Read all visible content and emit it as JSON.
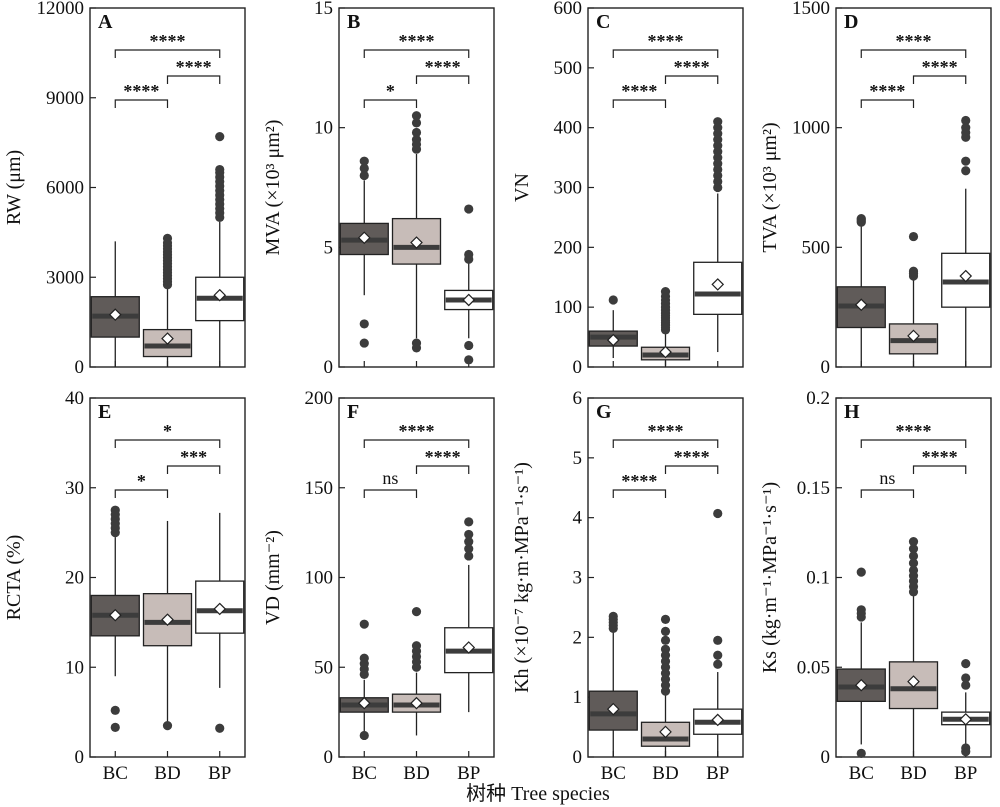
{
  "figure": {
    "x_label": "树种 Tree species",
    "categories": [
      "BC",
      "BD",
      "BP"
    ],
    "box_colors": [
      "#605b59",
      "#c7bcb8",
      "#ffffff"
    ],
    "median_color": "#3c3c3c",
    "outlier_color": "#3c3c3c"
  },
  "chart_data": [
    {
      "type": "box",
      "panel": "A",
      "ylabel": "RW (μm)",
      "ylim": [
        0,
        12000
      ],
      "yticks": [
        0,
        3000,
        6000,
        9000,
        12000
      ],
      "boxes": [
        {
          "category": "BC",
          "whisker_low": 0,
          "q1": 1000,
          "median": 1700,
          "q3": 2350,
          "whisker_high": 4200,
          "mean": 1750,
          "outliers": []
        },
        {
          "category": "BD",
          "whisker_low": 0,
          "q1": 350,
          "median": 700,
          "q3": 1250,
          "whisker_high": 2650,
          "mean": 950,
          "outliers": [
            2750,
            2850,
            2950,
            3050,
            3150,
            3250,
            3350,
            3450,
            3550,
            3650,
            3750,
            3850,
            3950,
            4050,
            4150,
            4300
          ]
        },
        {
          "category": "BP",
          "whisker_low": 0,
          "q1": 1550,
          "median": 2300,
          "q3": 3000,
          "whisker_high": 4850,
          "mean": 2400,
          "outliers": [
            5000,
            5150,
            5300,
            5450,
            5600,
            5750,
            5900,
            6050,
            6200,
            6350,
            6500,
            6600,
            7700
          ]
        }
      ],
      "significance": [
        {
          "from": "BC",
          "to": "BD",
          "label": "****"
        },
        {
          "from": "BD",
          "to": "BP",
          "label": "****"
        },
        {
          "from": "BC",
          "to": "BP",
          "label": "****"
        }
      ]
    },
    {
      "type": "box",
      "panel": "B",
      "ylabel": "MVA (×10³ μm²)",
      "ylim": [
        0,
        15
      ],
      "yticks": [
        0,
        5,
        10,
        15
      ],
      "boxes": [
        {
          "category": "BC",
          "whisker_low": 3.0,
          "q1": 4.7,
          "median": 5.3,
          "q3": 6.0,
          "whisker_high": 7.8,
          "mean": 5.4,
          "outliers": [
            1.0,
            1.8,
            8.0,
            8.3,
            8.6
          ]
        },
        {
          "category": "BD",
          "whisker_low": 1.2,
          "q1": 4.3,
          "median": 5.0,
          "q3": 6.2,
          "whisker_high": 8.9,
          "mean": 5.2,
          "outliers": [
            0.8,
            1.0,
            9.1,
            9.3,
            9.5,
            9.8,
            10.2,
            10.5
          ]
        },
        {
          "category": "BP",
          "whisker_low": 1.2,
          "q1": 2.4,
          "median": 2.8,
          "q3": 3.2,
          "whisker_high": 4.4,
          "mean": 2.8,
          "outliers": [
            0.3,
            0.9,
            4.5,
            4.7,
            6.6
          ]
        }
      ],
      "significance": [
        {
          "from": "BC",
          "to": "BD",
          "label": "*"
        },
        {
          "from": "BD",
          "to": "BP",
          "label": "****"
        },
        {
          "from": "BC",
          "to": "BP",
          "label": "****"
        }
      ]
    },
    {
      "type": "box",
      "panel": "C",
      "ylabel": "VN",
      "ylim": [
        0,
        600
      ],
      "yticks": [
        0,
        100,
        200,
        300,
        400,
        500,
        600
      ],
      "boxes": [
        {
          "category": "BC",
          "whisker_low": 15,
          "q1": 35,
          "median": 50,
          "q3": 60,
          "whisker_high": 95,
          "mean": 45,
          "outliers": [
            112
          ]
        },
        {
          "category": "BD",
          "whisker_low": 2,
          "q1": 12,
          "median": 20,
          "q3": 33,
          "whisker_high": 60,
          "mean": 25,
          "outliers": [
            62,
            66,
            70,
            74,
            78,
            82,
            86,
            90,
            95,
            100,
            106,
            112,
            118,
            126
          ]
        },
        {
          "category": "BP",
          "whisker_low": 25,
          "q1": 88,
          "median": 122,
          "q3": 175,
          "whisker_high": 290,
          "mean": 138,
          "outliers": [
            300,
            310,
            320,
            330,
            340,
            350,
            360,
            370,
            380,
            390,
            400,
            410
          ]
        }
      ],
      "significance": [
        {
          "from": "BC",
          "to": "BD",
          "label": "****"
        },
        {
          "from": "BD",
          "to": "BP",
          "label": "****"
        },
        {
          "from": "BC",
          "to": "BP",
          "label": "****"
        }
      ]
    },
    {
      "type": "box",
      "panel": "D",
      "ylabel": "TVA (×10³ μm²)",
      "ylim": [
        0,
        1500
      ],
      "yticks": [
        0,
        500,
        1000,
        1500
      ],
      "boxes": [
        {
          "category": "BC",
          "whisker_low": 0,
          "q1": 165,
          "median": 255,
          "q3": 335,
          "whisker_high": 600,
          "mean": 260,
          "outliers": [
            605,
            610,
            615,
            620
          ]
        },
        {
          "category": "BD",
          "whisker_low": 0,
          "q1": 55,
          "median": 110,
          "q3": 180,
          "whisker_high": 370,
          "mean": 130,
          "outliers": [
            380,
            390,
            400,
            545
          ]
        },
        {
          "category": "BP",
          "whisker_low": 0,
          "q1": 250,
          "median": 355,
          "q3": 475,
          "whisker_high": 745,
          "mean": 380,
          "outliers": [
            820,
            860,
            960,
            980,
            1000,
            1030
          ]
        }
      ],
      "significance": [
        {
          "from": "BC",
          "to": "BD",
          "label": "****"
        },
        {
          "from": "BD",
          "to": "BP",
          "label": "****"
        },
        {
          "from": "BC",
          "to": "BP",
          "label": "****"
        }
      ]
    },
    {
      "type": "box",
      "panel": "E",
      "ylabel": "RCTA (%)",
      "ylim": [
        0,
        40
      ],
      "yticks": [
        0,
        10,
        20,
        30,
        40
      ],
      "boxes": [
        {
          "category": "BC",
          "whisker_low": 9.0,
          "q1": 13.5,
          "median": 15.8,
          "q3": 18.0,
          "whisker_high": 24.5,
          "mean": 15.8,
          "outliers": [
            3.3,
            5.2,
            25.0,
            25.5,
            26.0,
            26.5,
            27.0,
            27.5
          ]
        },
        {
          "category": "BD",
          "whisker_low": 3.5,
          "q1": 12.4,
          "median": 15.0,
          "q3": 18.2,
          "whisker_high": 26.3,
          "mean": 15.3,
          "outliers": [
            3.5
          ]
        },
        {
          "category": "BP",
          "whisker_low": 7.7,
          "q1": 13.8,
          "median": 16.3,
          "q3": 19.6,
          "whisker_high": 27.2,
          "mean": 16.5,
          "outliers": [
            3.2
          ]
        }
      ],
      "significance": [
        {
          "from": "BC",
          "to": "BD",
          "label": "*"
        },
        {
          "from": "BD",
          "to": "BP",
          "label": "***"
        },
        {
          "from": "BC",
          "to": "BP",
          "label": "*"
        }
      ]
    },
    {
      "type": "box",
      "panel": "F",
      "ylabel": "VD (mm⁻²)",
      "ylim": [
        0,
        200
      ],
      "yticks": [
        0,
        50,
        100,
        150,
        200
      ],
      "boxes": [
        {
          "category": "BC",
          "whisker_low": 14,
          "q1": 25,
          "median": 29,
          "q3": 33,
          "whisker_high": 43,
          "mean": 30,
          "outliers": [
            12,
            46,
            49,
            52,
            55,
            74
          ]
        },
        {
          "category": "BD",
          "whisker_low": 12,
          "q1": 25,
          "median": 29,
          "q3": 35,
          "whisker_high": 47,
          "mean": 30,
          "outliers": [
            50,
            53,
            56,
            59,
            62,
            81
          ]
        },
        {
          "category": "BP",
          "whisker_low": 25,
          "q1": 47,
          "median": 59,
          "q3": 72,
          "whisker_high": 107,
          "mean": 61,
          "outliers": [
            112,
            116,
            120,
            124,
            131
          ]
        }
      ],
      "significance": [
        {
          "from": "BC",
          "to": "BD",
          "label": "ns"
        },
        {
          "from": "BD",
          "to": "BP",
          "label": "****"
        },
        {
          "from": "BC",
          "to": "BP",
          "label": "****"
        }
      ]
    },
    {
      "type": "box",
      "panel": "G",
      "ylabel": "Kh (×10⁻⁷ kg·m·MPa⁻¹·s⁻¹)",
      "ylim": [
        0,
        6
      ],
      "yticks": [
        0,
        1,
        2,
        3,
        4,
        5,
        6
      ],
      "boxes": [
        {
          "category": "BC",
          "whisker_low": 0,
          "q1": 0.45,
          "median": 0.72,
          "q3": 1.1,
          "whisker_high": 2.1,
          "mean": 0.8,
          "outliers": [
            2.15,
            2.2,
            2.25,
            2.3,
            2.35
          ]
        },
        {
          "category": "BD",
          "whisker_low": 0,
          "q1": 0.18,
          "median": 0.3,
          "q3": 0.58,
          "whisker_high": 1.05,
          "mean": 0.42,
          "outliers": [
            1.1,
            1.2,
            1.3,
            1.4,
            1.5,
            1.6,
            1.7,
            1.8,
            1.95,
            2.1,
            2.3
          ]
        },
        {
          "category": "BP",
          "whisker_low": 0,
          "q1": 0.38,
          "median": 0.58,
          "q3": 0.8,
          "whisker_high": 1.42,
          "mean": 0.62,
          "outliers": [
            1.55,
            1.7,
            1.95,
            4.07
          ]
        }
      ],
      "significance": [
        {
          "from": "BC",
          "to": "BD",
          "label": "****"
        },
        {
          "from": "BD",
          "to": "BP",
          "label": "****"
        },
        {
          "from": "BC",
          "to": "BP",
          "label": "****"
        }
      ]
    },
    {
      "type": "box",
      "panel": "H",
      "ylabel": "Ks (kg·m⁻¹·MPa⁻¹·s⁻¹)",
      "ylim": [
        0,
        0.2
      ],
      "yticks": [
        0,
        0.05,
        0.1,
        0.15,
        0.2
      ],
      "boxes": [
        {
          "category": "BC",
          "whisker_low": 0.007,
          "q1": 0.031,
          "median": 0.039,
          "q3": 0.049,
          "whisker_high": 0.075,
          "mean": 0.04,
          "outliers": [
            0.002,
            0.078,
            0.08,
            0.082,
            0.103
          ]
        },
        {
          "category": "BD",
          "whisker_low": 0.0,
          "q1": 0.027,
          "median": 0.038,
          "q3": 0.053,
          "whisker_high": 0.09,
          "mean": 0.042,
          "outliers": [
            0.092,
            0.095,
            0.098,
            0.101,
            0.104,
            0.108,
            0.112,
            0.116,
            0.12
          ]
        },
        {
          "category": "BP",
          "whisker_low": 0.007,
          "q1": 0.018,
          "median": 0.021,
          "q3": 0.025,
          "whisker_high": 0.036,
          "mean": 0.021,
          "outliers": [
            0.003,
            0.005,
            0.04,
            0.044,
            0.052
          ]
        }
      ],
      "significance": [
        {
          "from": "BC",
          "to": "BD",
          "label": "ns"
        },
        {
          "from": "BD",
          "to": "BP",
          "label": "****"
        },
        {
          "from": "BC",
          "to": "BP",
          "label": "****"
        }
      ]
    }
  ]
}
